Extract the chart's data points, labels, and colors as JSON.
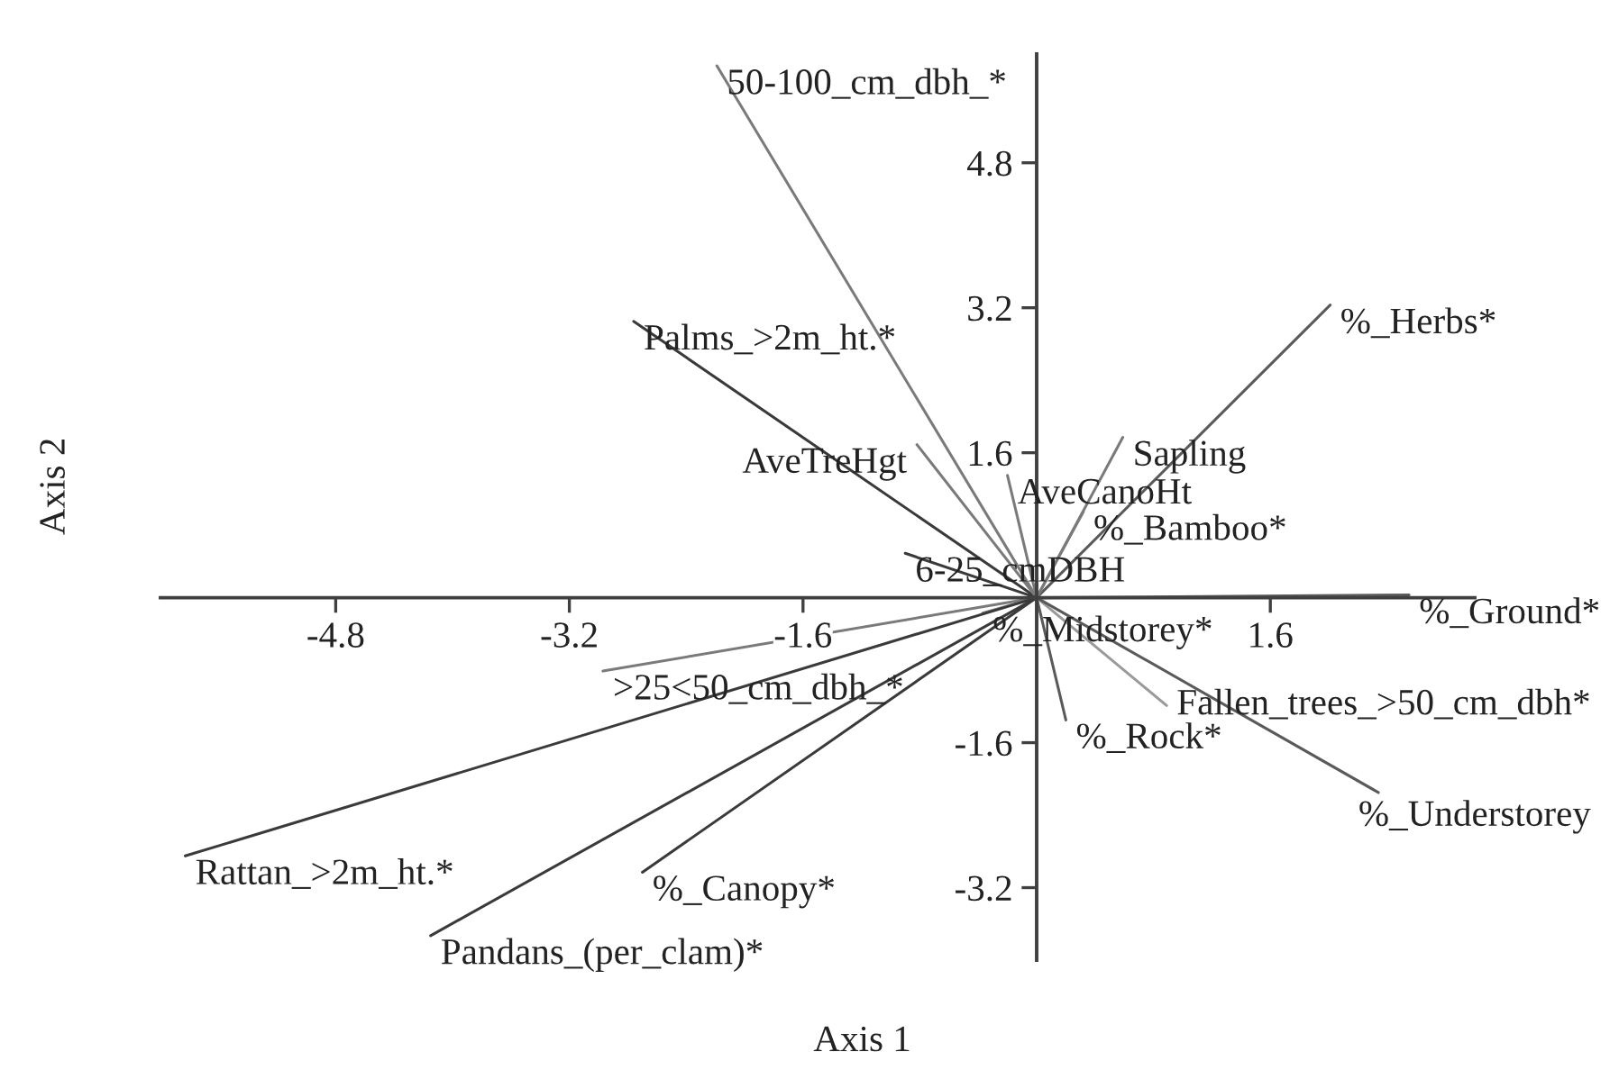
{
  "chart_data": {
    "type": "line",
    "xlabel": "Axis 1",
    "ylabel": "Axis 2",
    "xlim": [
      -6.0,
      3.0
    ],
    "ylim": [
      -4.0,
      6.0
    ],
    "xticks": [
      -4.8,
      -3.2,
      -1.6,
      1.6
    ],
    "yticks": [
      -3.2,
      -1.6,
      1.6,
      3.2,
      4.8
    ],
    "series": [
      {
        "name": "50-100_cm_dbh_*",
        "color": "#7a7a7a",
        "x": [
          0,
          -2.19
        ],
        "values": [
          0,
          5.87
        ]
      },
      {
        "name": "Palms_>2m_ht.*",
        "color": "#3a3a3a",
        "x": [
          0,
          -2.76
        ],
        "values": [
          0,
          3.05
        ]
      },
      {
        "name": "%_Herbs*",
        "color": "#5a5a5a",
        "x": [
          0,
          2.01
        ],
        "values": [
          0,
          3.23
        ]
      },
      {
        "name": "AveTreHgt",
        "color": "#7a7a7a",
        "x": [
          0,
          -0.82
        ],
        "values": [
          0,
          1.69
        ]
      },
      {
        "name": "Sapling",
        "color": "#7a7a7a",
        "x": [
          0,
          0.59
        ],
        "values": [
          0,
          1.77
        ]
      },
      {
        "name": "AveCanoHt",
        "color": "#7a7a7a",
        "x": [
          0,
          -0.2
        ],
        "values": [
          0,
          1.35
        ]
      },
      {
        "name": "%_Bamboo*",
        "color": "#7a7a7a",
        "x": [
          0,
          0.32
        ],
        "values": [
          0,
          0.95
        ]
      },
      {
        "name": "6-25_cmDBH",
        "color": "#3a3a3a",
        "x": [
          0,
          -0.9
        ],
        "values": [
          0,
          0.49
        ]
      },
      {
        "name": "%_Ground*",
        "color": "#5a5a5a",
        "x": [
          0,
          2.55
        ],
        "values": [
          0,
          0.03
        ]
      },
      {
        "name": "%_Midstorey*",
        "color": "#7a7a7a",
        "x": [
          0,
          -0.37
        ],
        "values": [
          0,
          -0.17
        ]
      },
      {
        "name": ">25<50_cm_dbh_*",
        "color": "#7a7a7a",
        "x": [
          0,
          -2.97
        ],
        "values": [
          0,
          -0.81
        ]
      },
      {
        "name": "%_Rock*",
        "color": "#5a5a5a",
        "x": [
          0,
          0.2
        ],
        "values": [
          0,
          -1.35
        ]
      },
      {
        "name": "Fallen_trees_>50_cm_dbh*",
        "color": "#9a9a9a",
        "x": [
          0,
          0.89
        ],
        "values": [
          0,
          -1.19
        ]
      },
      {
        "name": "%_Understorey",
        "color": "#5a5a5a",
        "x": [
          0,
          2.34
        ],
        "values": [
          0,
          -2.15
        ]
      },
      {
        "name": "Rattan_>2m_ht.*",
        "color": "#3a3a3a",
        "x": [
          0,
          -5.83
        ],
        "values": [
          0,
          -2.85
        ]
      },
      {
        "name": "Pandans_(per_clam)*",
        "color": "#3a3a3a",
        "x": [
          0,
          -4.15
        ],
        "values": [
          0,
          -3.73
        ]
      },
      {
        "name": "%_Canopy*",
        "color": "#3a3a3a",
        "x": [
          0,
          -2.7
        ],
        "values": [
          0,
          -3.03
        ]
      }
    ]
  }
}
